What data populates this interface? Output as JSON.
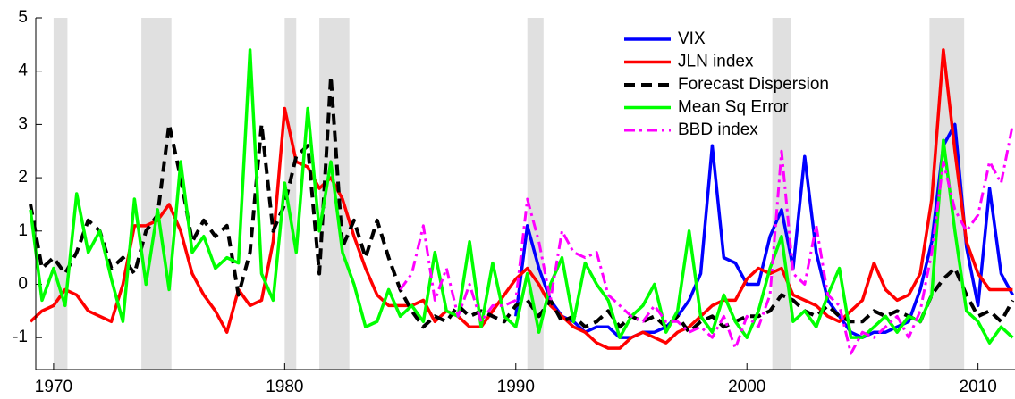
{
  "chart_data": {
    "type": "line",
    "x": [
      1969,
      1969.5,
      1970,
      1970.5,
      1971,
      1971.5,
      1972,
      1972.5,
      1973,
      1973.5,
      1974,
      1974.5,
      1975,
      1975.5,
      1976,
      1976.5,
      1977,
      1977.5,
      1978,
      1978.5,
      1979,
      1979.5,
      1980,
      1980.5,
      1981,
      1981.5,
      1982,
      1982.5,
      1983,
      1983.5,
      1984,
      1984.5,
      1985,
      1985.5,
      1986,
      1986.5,
      1987,
      1987.5,
      1988,
      1988.5,
      1989,
      1989.5,
      1990,
      1990.5,
      1991,
      1991.5,
      1992,
      1992.5,
      1993,
      1993.5,
      1994,
      1994.5,
      1995,
      1995.5,
      1996,
      1996.5,
      1997,
      1997.5,
      1998,
      1998.5,
      1999,
      1999.5,
      2000,
      2000.5,
      2001,
      2001.5,
      2002,
      2002.5,
      2003,
      2003.5,
      2004,
      2004.5,
      2005,
      2005.5,
      2006,
      2006.5,
      2007,
      2007.5,
      2008,
      2008.5,
      2009,
      2009.5,
      2010,
      2010.5,
      2011,
      2011.5
    ],
    "series": [
      {
        "name": "VIX",
        "color": "#0000ff",
        "dash": "solid",
        "values": [
          null,
          null,
          null,
          null,
          null,
          null,
          null,
          null,
          null,
          null,
          null,
          null,
          null,
          null,
          null,
          null,
          null,
          null,
          null,
          null,
          null,
          null,
          null,
          null,
          null,
          null,
          null,
          null,
          null,
          null,
          null,
          null,
          null,
          null,
          null,
          null,
          null,
          null,
          null,
          null,
          null,
          null,
          -0.6,
          1.1,
          0.3,
          -0.3,
          -0.6,
          -0.7,
          -0.9,
          -0.8,
          -0.8,
          -1.0,
          -1.0,
          -0.9,
          -0.9,
          -0.8,
          -0.6,
          -0.3,
          0.2,
          2.6,
          0.5,
          0.4,
          0.0,
          0.0,
          0.9,
          1.4,
          0.3,
          2.4,
          0.6,
          -0.3,
          -0.6,
          -0.9,
          -1.0,
          -0.9,
          -0.9,
          -0.8,
          -0.7,
          -0.1,
          0.8,
          2.6,
          3.0,
          0.7,
          -0.4,
          1.8,
          0.2,
          -0.2
        ]
      },
      {
        "name": "JLN index",
        "color": "#ff0000",
        "dash": "solid",
        "values": [
          -0.7,
          -0.5,
          -0.4,
          -0.1,
          -0.2,
          -0.5,
          -0.6,
          -0.7,
          0.0,
          1.1,
          1.1,
          1.2,
          1.5,
          1.0,
          0.2,
          -0.2,
          -0.5,
          -0.9,
          -0.1,
          -0.4,
          -0.3,
          0.8,
          3.3,
          2.3,
          2.2,
          1.8,
          2.0,
          1.6,
          0.9,
          0.3,
          -0.2,
          -0.4,
          -0.4,
          -0.4,
          -0.3,
          -0.7,
          -0.5,
          -0.6,
          -0.8,
          -0.8,
          -0.5,
          -0.2,
          0.1,
          0.3,
          0.0,
          -0.4,
          -0.6,
          -0.8,
          -0.9,
          -1.1,
          -1.2,
          -1.2,
          -1.0,
          -0.9,
          -1.0,
          -1.1,
          -0.9,
          -0.8,
          -0.6,
          -0.4,
          -0.3,
          -0.3,
          0.1,
          0.3,
          0.2,
          0.3,
          -0.2,
          -0.3,
          -0.4,
          -0.6,
          -0.7,
          -0.5,
          -0.3,
          0.4,
          -0.1,
          -0.3,
          -0.2,
          0.2,
          1.6,
          4.4,
          2.5,
          0.8,
          0.2,
          -0.1,
          -0.1,
          -0.1
        ]
      },
      {
        "name": "Forecast Dispersion",
        "color": "#000000",
        "dash": "dashed",
        "values": [
          1.5,
          0.3,
          0.5,
          0.2,
          0.6,
          1.2,
          1.0,
          0.3,
          0.5,
          0.2,
          1.0,
          1.3,
          3.0,
          2.0,
          0.8,
          1.2,
          0.9,
          1.1,
          -0.2,
          0.6,
          3.0,
          1.0,
          1.5,
          2.4,
          2.6,
          0.2,
          3.9,
          0.7,
          1.2,
          0.5,
          1.2,
          0.5,
          -0.1,
          -0.5,
          -0.8,
          -0.6,
          -0.7,
          -0.4,
          -0.6,
          -0.5,
          -0.6,
          -0.7,
          -0.4,
          -0.3,
          -0.6,
          -0.3,
          -0.7,
          -0.6,
          -0.8,
          -0.7,
          -0.5,
          -0.8,
          -0.6,
          -0.7,
          -0.6,
          -0.8,
          -0.6,
          -0.9,
          -0.7,
          -0.6,
          -0.8,
          -0.7,
          -0.6,
          -0.6,
          -0.5,
          -0.2,
          -0.3,
          -0.5,
          -0.6,
          -0.4,
          -0.6,
          -0.7,
          -0.7,
          -0.5,
          -0.6,
          -0.5,
          -0.6,
          -0.7,
          -0.2,
          0.1,
          0.3,
          -0.2,
          -0.6,
          -0.5,
          -0.7,
          -0.3
        ]
      },
      {
        "name": "Mean Sq Error",
        "color": "#00ff00",
        "dash": "solid",
        "values": [
          1.4,
          -0.3,
          0.3,
          -0.4,
          1.7,
          0.6,
          1.0,
          0.1,
          -0.7,
          1.6,
          0.0,
          1.4,
          -0.1,
          2.3,
          0.6,
          0.9,
          0.3,
          0.5,
          0.4,
          4.4,
          0.2,
          -0.3,
          1.9,
          0.6,
          3.3,
          1.0,
          2.3,
          0.6,
          0.0,
          -0.8,
          -0.7,
          -0.1,
          -0.6,
          -0.4,
          -0.7,
          0.6,
          -0.5,
          -0.6,
          0.8,
          -0.8,
          0.4,
          -0.6,
          -0.8,
          0.2,
          -0.9,
          0.0,
          0.5,
          -0.7,
          0.4,
          0.0,
          -0.3,
          -1.0,
          -0.6,
          -0.4,
          0.0,
          -0.9,
          -0.5,
          1.0,
          -0.6,
          -0.9,
          -0.2,
          -0.7,
          -1.0,
          -0.5,
          0.3,
          0.9,
          -0.7,
          -0.5,
          -0.8,
          -0.2,
          0.3,
          -1.0,
          -1.0,
          -0.8,
          -0.6,
          -0.9,
          -0.6,
          -0.7,
          -0.2,
          2.7,
          1.0,
          -0.5,
          -0.7,
          -1.1,
          -0.8,
          -1.0
        ]
      },
      {
        "name": "BBD index",
        "color": "#ff00ff",
        "dash": "dashdot",
        "values": [
          null,
          null,
          null,
          null,
          null,
          null,
          null,
          null,
          null,
          null,
          null,
          null,
          null,
          null,
          null,
          null,
          null,
          null,
          null,
          null,
          null,
          null,
          null,
          null,
          null,
          null,
          null,
          null,
          null,
          null,
          null,
          null,
          -0.1,
          0.2,
          1.1,
          -0.3,
          0.3,
          -0.6,
          0.0,
          -0.7,
          -0.4,
          -0.4,
          -0.3,
          1.6,
          0.8,
          -0.3,
          1.0,
          0.6,
          0.5,
          0.6,
          -0.2,
          -0.4,
          -0.6,
          -0.7,
          -0.4,
          -0.7,
          -0.7,
          -0.9,
          -0.8,
          -1.0,
          -0.6,
          -1.2,
          -0.6,
          -0.8,
          -0.2,
          2.5,
          0.2,
          0.0,
          1.1,
          -0.2,
          -0.4,
          -1.3,
          -0.9,
          -1.0,
          -0.8,
          -0.6,
          -1.0,
          -0.5,
          0.6,
          2.3,
          1.4,
          1.0,
          1.3,
          2.3,
          1.9,
          3.0
        ]
      }
    ],
    "shaded_periods": [
      [
        1970,
        1970.6
      ],
      [
        1973.8,
        1975.1
      ],
      [
        1980,
        1980.5
      ],
      [
        1981.5,
        1982.8
      ],
      [
        1990.5,
        1991.2
      ],
      [
        2001.1,
        2001.9
      ],
      [
        2007.9,
        2009.4
      ]
    ],
    "xlim": [
      1969.23,
      2011.6
    ],
    "xticks": [
      1970,
      1980,
      1990,
      2000,
      2010
    ],
    "ylim": [
      -1.6,
      5
    ],
    "yticks": [
      -1,
      0,
      1,
      2,
      3,
      4,
      5
    ],
    "legend": "upper right"
  }
}
